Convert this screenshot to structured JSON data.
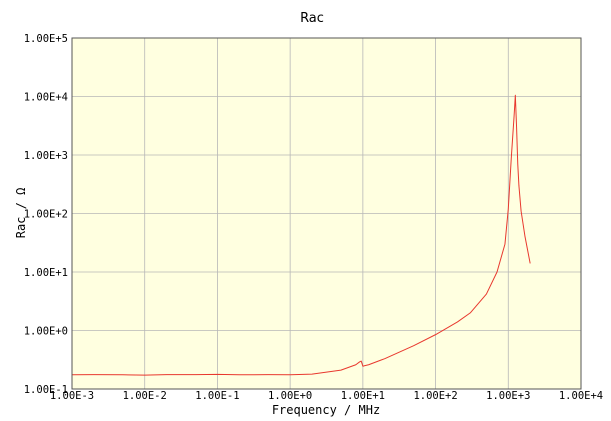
{
  "chart_data": {
    "type": "line",
    "title": "Rac",
    "xlabel": "Frequency / MHz",
    "ylabel": "Rac / Ω",
    "x_scale": "log",
    "y_scale": "log",
    "xlim": [
      0.001,
      10000
    ],
    "ylim": [
      0.1,
      100000
    ],
    "x_tick_labels": [
      "1.00E-3",
      "1.00E-2",
      "1.00E-1",
      "1.00E+0",
      "1.00E+1",
      "1.00E+2",
      "1.00E+3",
      "1.00E+4"
    ],
    "y_tick_labels": [
      "1.00E-1",
      "1.00E+0",
      "1.00E+1",
      "1.00E+2",
      "1.00E+3",
      "1.00E+4",
      "1.00E+5"
    ],
    "grid": true,
    "legend": "none",
    "colors": {
      "plot_background": "#ffffe0",
      "grid": "#b7b7b7",
      "series": "#e8382e",
      "frame": "#555555"
    },
    "series": [
      {
        "x": [
          0.001,
          0.002,
          0.005,
          0.01,
          0.02,
          0.05,
          0.1,
          0.2,
          0.5,
          1,
          2,
          5,
          8,
          9,
          9.5,
          10,
          10.5,
          12,
          20,
          50,
          100,
          200,
          300,
          500,
          700,
          900,
          1000,
          1100,
          1200,
          1250,
          1300,
          1350,
          1400,
          1500,
          1700,
          2000
        ],
        "y": [
          0.175,
          0.176,
          0.175,
          0.173,
          0.176,
          0.176,
          0.178,
          0.175,
          0.176,
          0.175,
          0.18,
          0.21,
          0.26,
          0.29,
          0.3,
          0.245,
          0.25,
          0.26,
          0.33,
          0.55,
          0.85,
          1.4,
          2.0,
          4.2,
          10,
          30,
          120,
          900,
          4500,
          10500,
          3000,
          700,
          300,
          110,
          40,
          14
        ]
      }
    ]
  }
}
